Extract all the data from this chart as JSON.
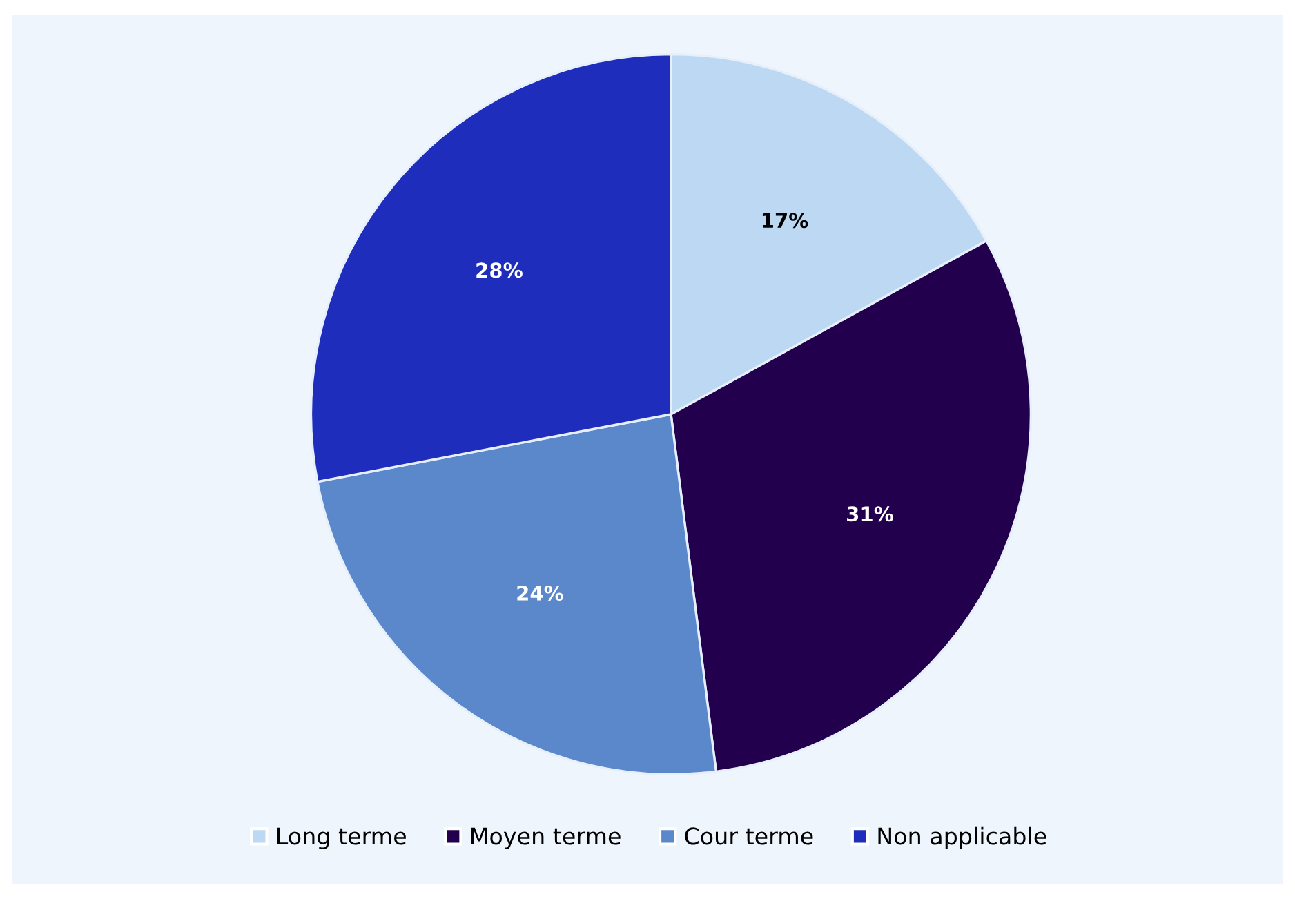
{
  "chart_data": {
    "type": "pie",
    "categories": [
      "Long terme",
      "Moyen terme",
      "Cour terme",
      "Non applicable"
    ],
    "values": [
      17,
      31,
      24,
      28
    ],
    "colors": [
      "#bcd8f2",
      "#23004d",
      "#5b88cb",
      "#1e2dbc"
    ],
    "value_labels": [
      "17%",
      "31%",
      "24%",
      "28%"
    ],
    "legend": "bottom"
  }
}
